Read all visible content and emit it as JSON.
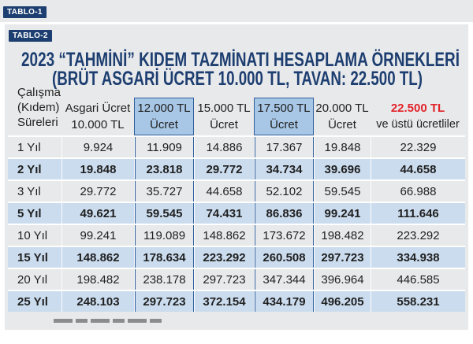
{
  "tags": {
    "previous": "TABLO-1",
    "current": "TABLO-2"
  },
  "colors": {
    "navy": "#1d3e70",
    "red": "#e2232a",
    "panel": "#e8e9eb",
    "row_highlight": "#cbdcee",
    "column_highlight": "#a8c7e6",
    "column_highlight_border": "#2f5e9b"
  },
  "chart_data": {
    "type": "table",
    "title": "2023 “TAHMİNİ” KIDEM TAZMİNATI HESAPLAMA ÖRNEKLERİ",
    "subtitle": "(BRÜT ASGARİ ÜCRET 10.000 TL, TAVAN: 22.500 TL)",
    "columns": [
      {
        "lines": [
          "Çalışma",
          "(Kıdem)",
          "Süreleri"
        ]
      },
      {
        "lines": [
          "Asgari Ücret",
          "10.000 TL"
        ]
      },
      {
        "lines": [
          "12.000 TL",
          "Ücret"
        ],
        "highlight": true
      },
      {
        "lines": [
          "15.000 TL",
          "Ücret"
        ]
      },
      {
        "lines": [
          "17.500 TL",
          "Ücret"
        ],
        "highlight": true
      },
      {
        "lines": [
          "20.000 TL",
          "Ücret"
        ]
      },
      {
        "lines": [
          "22.500 TL",
          "ve üstü ücretliler"
        ],
        "accent_first_line": true
      }
    ],
    "rows": [
      {
        "label": "1 Yıl",
        "emphasized": false,
        "values": [
          "9.924",
          "11.909",
          "14.886",
          "17.367",
          "19.848",
          "22.329"
        ]
      },
      {
        "label": "2 Yıl",
        "emphasized": true,
        "values": [
          "19.848",
          "23.818",
          "29.772",
          "34.734",
          "39.696",
          "44.658"
        ]
      },
      {
        "label": "3 Yıl",
        "emphasized": false,
        "values": [
          "29.772",
          "35.727",
          "44.658",
          "52.102",
          "59.545",
          "66.988"
        ]
      },
      {
        "label": "5 Yıl",
        "emphasized": true,
        "values": [
          "49.621",
          "59.545",
          "74.431",
          "86.836",
          "99.241",
          "111.646"
        ]
      },
      {
        "label": "10 Yıl",
        "emphasized": false,
        "values": [
          "99.241",
          "119.089",
          "148.862",
          "173.672",
          "198.482",
          "223.292"
        ]
      },
      {
        "label": "15 Yıl",
        "emphasized": true,
        "values": [
          "148.862",
          "178.634",
          "223.292",
          "260.508",
          "297.723",
          "334.938"
        ]
      },
      {
        "label": "20 Yıl",
        "emphasized": false,
        "values": [
          "198.482",
          "238.178",
          "297.723",
          "347.344",
          "396.964",
          "446.585"
        ]
      },
      {
        "label": "25 Yıl",
        "emphasized": true,
        "values": [
          "248.103",
          "297.723",
          "372.154",
          "434.179",
          "496.205",
          "558.231"
        ]
      }
    ]
  }
}
